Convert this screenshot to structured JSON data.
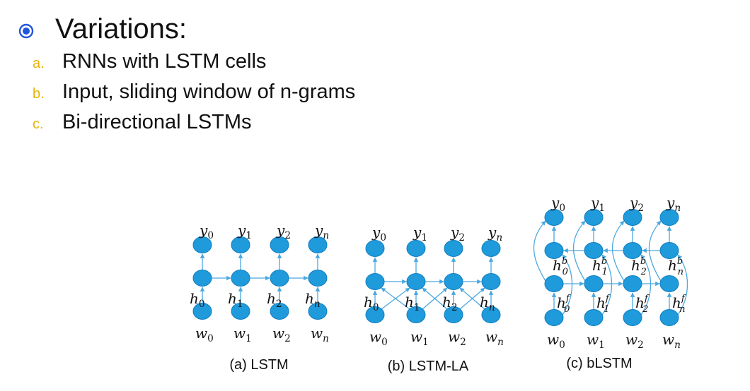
{
  "heading": "Variations:",
  "items": [
    {
      "marker": "a.",
      "text": "RNNs with LSTM cells"
    },
    {
      "marker": "b.",
      "text": "Input, sliding window of n-grams"
    },
    {
      "marker": "c.",
      "text": "Bi-directional LSTMs"
    }
  ],
  "colors": {
    "node": "#1f9bdc",
    "node_stroke": "#0f7cc0",
    "arrow": "#4aa8e0",
    "marker": "#e8b20a",
    "bullet": "#2255dd"
  },
  "icons": {
    "bullet": "radio-bullet-icon"
  },
  "diagrams": {
    "lstm": {
      "caption": "(a) LSTM",
      "outputs": [
        "y0",
        "y1",
        "y2",
        "yn"
      ],
      "hidden": [
        "h0",
        "h1",
        "h2",
        "hn"
      ],
      "inputs": [
        "w0",
        "w1",
        "w2",
        "wn"
      ]
    },
    "lstm_la": {
      "caption": "(b) LSTM-LA",
      "outputs": [
        "y0",
        "y1",
        "y2",
        "yn"
      ],
      "hidden": [
        "h0",
        "h1",
        "h2",
        "hn"
      ],
      "inputs": [
        "w0",
        "w1",
        "w2",
        "wn"
      ]
    },
    "blstm": {
      "caption": "(c) bLSTM",
      "outputs": [
        "y0",
        "y1",
        "y2",
        "yn"
      ],
      "backward": [
        "h0b",
        "h1b",
        "h2b",
        "hnb"
      ],
      "forward": [
        "h0f",
        "h1f",
        "h2f",
        "hnf"
      ],
      "inputs": [
        "w0",
        "w1",
        "w2",
        "wn"
      ]
    }
  }
}
